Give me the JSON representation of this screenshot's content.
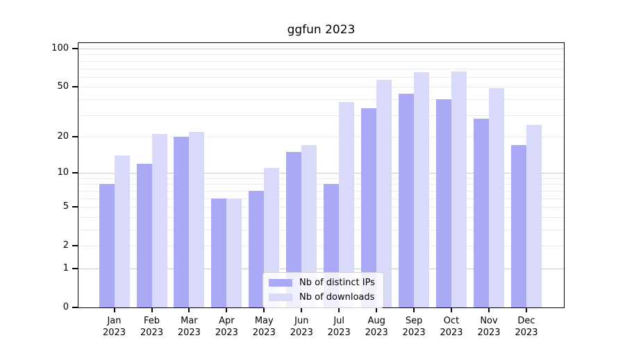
{
  "title": "ggfun 2023",
  "chart_data": {
    "type": "bar",
    "title": "ggfun 2023",
    "categories": [
      "Jan 2023",
      "Feb 2023",
      "Mar 2023",
      "Apr 2023",
      "May 2023",
      "Jun 2023",
      "Jul 2023",
      "Aug 2023",
      "Sep 2023",
      "Oct 2023",
      "Nov 2023",
      "Dec 2023"
    ],
    "series": [
      {
        "name": "Nb of distinct IPs",
        "color": "#a9a9f5",
        "values": [
          8,
          12,
          20,
          6,
          7,
          15,
          8,
          34,
          44,
          40,
          28,
          17
        ]
      },
      {
        "name": "Nb of downloads",
        "color": "#d9d9f9",
        "values": [
          14,
          21,
          22,
          6,
          11,
          17,
          38,
          57,
          65,
          66,
          49,
          25
        ]
      }
    ],
    "yscale": "log1p",
    "ylim": [
      0,
      110
    ],
    "y_ticks": [
      0,
      1,
      2,
      5,
      10,
      20,
      50,
      100
    ],
    "y_major_gridlines": [
      1,
      10,
      100
    ],
    "y_minor_gridlines": [
      2,
      3,
      4,
      5,
      6,
      7,
      8,
      9,
      20,
      30,
      40,
      50,
      60,
      70,
      80,
      90
    ],
    "grid": true,
    "legend_position": "inside-bottom-center",
    "colors": {
      "major_grid": "#c9c9c9",
      "minor_grid": "#ececec",
      "frame": "#000000",
      "tick_text": "#000000"
    }
  }
}
